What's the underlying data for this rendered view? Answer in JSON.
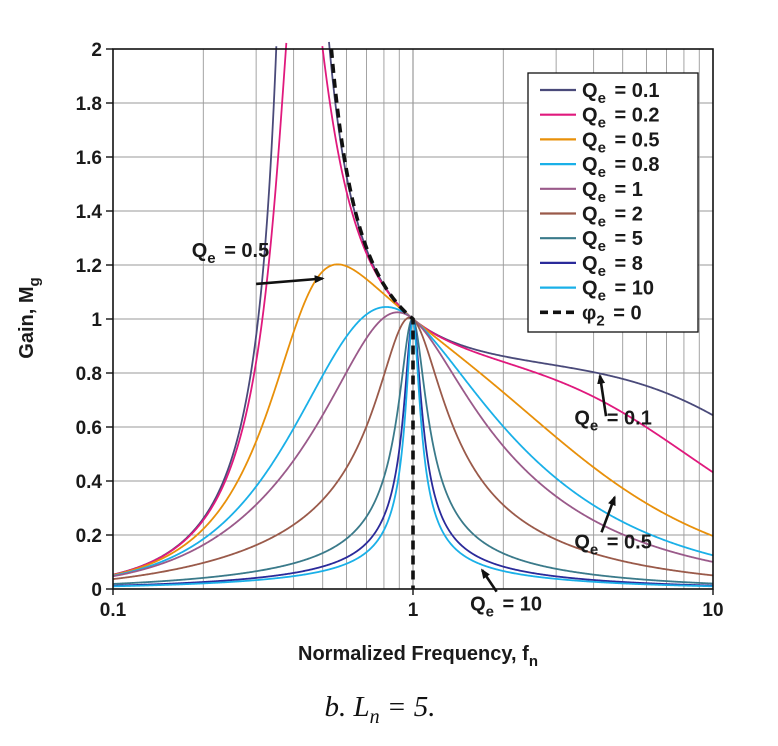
{
  "chart_data": {
    "type": "line",
    "xlabel": "Normalized Frequency, f",
    "xlabel_sub": "n",
    "ylabel": "Gain, M",
    "ylabel_sub": "g",
    "x_scale": "log",
    "xlim": [
      0.1,
      10
    ],
    "ylim": [
      0,
      2
    ],
    "grid": true,
    "legend_position": "top-right",
    "x_ticks": [
      "0.1",
      "1",
      "10"
    ],
    "y_ticks": [
      "0",
      "0.2",
      "0.4",
      "0.6",
      "0.8",
      "1",
      "1.2",
      "1.4",
      "1.6",
      "1.8",
      "2"
    ],
    "Ln": 5,
    "series": [
      {
        "name": "Qe = 0.1",
        "prefix": "Q",
        "sub": "e",
        "value": "= 0.1",
        "q": 0.1,
        "color": "#4a4a7a"
      },
      {
        "name": "Qe = 0.2",
        "prefix": "Q",
        "sub": "e",
        "value": "= 0.2",
        "q": 0.2,
        "color": "#e0197d"
      },
      {
        "name": "Qe = 0.5",
        "prefix": "Q",
        "sub": "e",
        "value": "= 0.5",
        "q": 0.5,
        "color": "#e8900a"
      },
      {
        "name": "Qe = 0.8",
        "prefix": "Q",
        "sub": "e",
        "value": "= 0.8",
        "q": 0.8,
        "color": "#1ab0e8"
      },
      {
        "name": "Qe = 1",
        "prefix": "Q",
        "sub": "e",
        "value": "= 1",
        "q": 1,
        "color": "#9a5a8a"
      },
      {
        "name": "Qe = 2",
        "prefix": "Q",
        "sub": "e",
        "value": "= 2",
        "q": 2,
        "color": "#9a5a4a"
      },
      {
        "name": "Qe = 5",
        "prefix": "Q",
        "sub": "e",
        "value": "= 5",
        "q": 5,
        "color": "#3a7a8a"
      },
      {
        "name": "Qe = 8",
        "prefix": "Q",
        "sub": "e",
        "value": "= 8",
        "q": 8,
        "color": "#2a2a9a"
      },
      {
        "name": "Qe = 10",
        "prefix": "Q",
        "sub": "e",
        "value": "= 10",
        "q": 10,
        "color": "#1ab0e8"
      },
      {
        "name": "φ2 = 0",
        "prefix": "φ",
        "sub": "2",
        "value": "= 0",
        "color": "#111111",
        "dashed": true
      }
    ],
    "annotations": [
      {
        "prefix": "Q",
        "sub": "e",
        "value": "= 0.5",
        "text_x": 0.183,
        "text_y": 1.23,
        "arrow_x": 0.3,
        "arrow_y": 1.13,
        "tip_x": 0.5,
        "tip_y": 1.15
      },
      {
        "prefix": "Q",
        "sub": "e",
        "value": "= 0.1",
        "text_x": 3.45,
        "text_y": 0.61,
        "arrow_x": 4.4,
        "arrow_y": 0.64,
        "tip_x": 4.2,
        "tip_y": 0.79
      },
      {
        "prefix": "Q",
        "sub": "e",
        "value": "= 0.5",
        "text_x": 3.45,
        "text_y": 0.15,
        "arrow_x": 4.25,
        "arrow_y": 0.21,
        "tip_x": 4.7,
        "tip_y": 0.34
      },
      {
        "prefix": "Q",
        "sub": "e",
        "value": "= 10",
        "text_x": 1.55,
        "text_y": -0.08,
        "arrow_x": 1.9,
        "arrow_y": -0.01,
        "tip_x": 1.7,
        "tip_y": 0.07
      }
    ]
  },
  "caption": {
    "prefix": "b. L",
    "sub": "n",
    "suffix": " = 5."
  }
}
